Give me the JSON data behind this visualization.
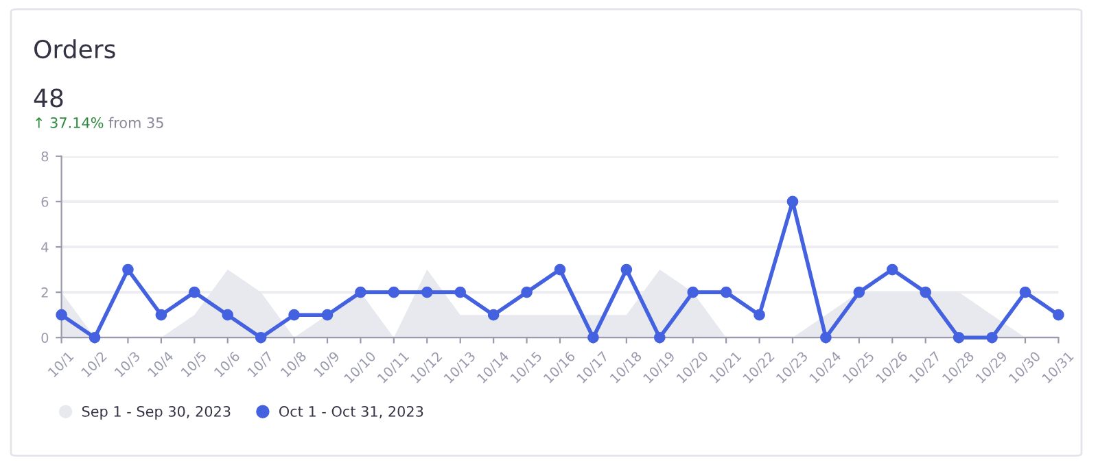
{
  "chart_data": {
    "type": "line",
    "title": "Orders",
    "subtitle": "48",
    "annotations": [
      "↑ 37.14%",
      "from 35"
    ],
    "categories": [
      "10/1",
      "10/2",
      "10/3",
      "10/4",
      "10/5",
      "10/6",
      "10/7",
      "10/8",
      "10/9",
      "10/10",
      "10/11",
      "10/12",
      "10/13",
      "10/14",
      "10/15",
      "10/16",
      "10/17",
      "10/18",
      "10/19",
      "10/20",
      "10/21",
      "10/22",
      "10/23",
      "10/24",
      "10/25",
      "10/26",
      "10/27",
      "10/28",
      "10/29",
      "10/30",
      "10/31"
    ],
    "series": [
      {
        "name": "Sep 1 - Sep 30, 2023",
        "type": "area",
        "color": "#e8e9ef",
        "values": [
          2,
          0,
          0,
          0,
          1,
          3,
          2,
          0,
          1,
          2,
          0,
          3,
          1,
          1,
          1,
          1,
          1,
          1,
          3,
          2,
          0,
          0,
          0,
          1,
          2,
          2,
          2,
          2,
          1,
          0,
          null
        ]
      },
      {
        "name": "Oct 1 - Oct 31, 2023",
        "color": "#4461e0",
        "marker": "circle",
        "values": [
          1,
          0,
          3,
          1,
          2,
          1,
          0,
          1,
          1,
          2,
          2,
          2,
          2,
          1,
          2,
          3,
          0,
          3,
          0,
          2,
          2,
          1,
          6,
          0,
          2,
          3,
          2,
          0,
          0,
          2,
          1
        ]
      }
    ],
    "ylim": [
      0,
      8
    ],
    "yticks": [
      0,
      2,
      4,
      6,
      8
    ],
    "grid": "y",
    "legend": "bottom left"
  }
}
